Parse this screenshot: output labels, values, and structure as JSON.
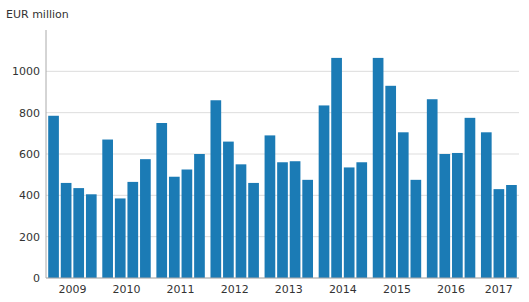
{
  "chart_data": {
    "type": "bar",
    "ylabel": "EUR million",
    "categories": [
      "2009",
      null,
      null,
      null,
      "2010",
      null,
      null,
      null,
      "2011",
      null,
      null,
      null,
      "2012",
      null,
      null,
      null,
      "2013",
      null,
      null,
      null,
      "2014",
      null,
      null,
      null,
      "2015",
      null,
      null,
      null,
      "2016",
      null,
      null,
      null,
      "2017",
      null,
      null
    ],
    "values": [
      785,
      460,
      435,
      405,
      670,
      385,
      465,
      575,
      750,
      490,
      525,
      600,
      860,
      660,
      550,
      460,
      690,
      560,
      565,
      475,
      835,
      1065,
      535,
      560,
      1065,
      930,
      705,
      475,
      865,
      600,
      605,
      775,
      705,
      430,
      450
    ],
    "color": "#1b7bb5",
    "ylim": [
      0,
      1200
    ],
    "yticks": [
      0,
      200,
      400,
      600,
      800,
      1000
    ],
    "grid": true
  }
}
